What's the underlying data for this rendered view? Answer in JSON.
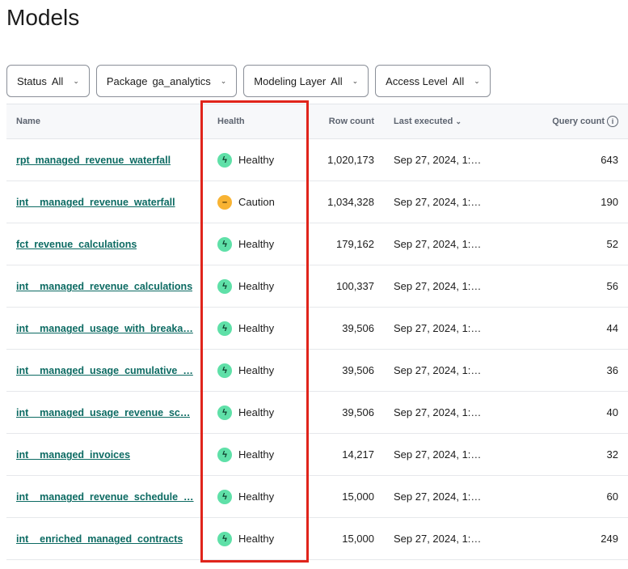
{
  "title": "Models",
  "filters": [
    {
      "label": "Status",
      "value": "All"
    },
    {
      "label": "Package",
      "value": "ga_analytics"
    },
    {
      "label": "Modeling Layer",
      "value": "All"
    },
    {
      "label": "Access Level",
      "value": "All"
    }
  ],
  "columns": {
    "name": "Name",
    "health": "Health",
    "row_count": "Row count",
    "last_executed": "Last executed",
    "query_count": "Query count"
  },
  "colors": {
    "healthy": "#5fe0a8",
    "caution": "#f8b333",
    "highlight": "#e0241b",
    "link": "#0d6b63"
  },
  "rows": [
    {
      "name": "rpt_managed_revenue_waterfall",
      "health": "Healthy",
      "status": "healthy",
      "row_count": "1,020,173",
      "last_executed": "Sep 27, 2024, 1:…",
      "query_count": "643"
    },
    {
      "name": "int__managed_revenue_waterfall",
      "health": "Caution",
      "status": "caution",
      "row_count": "1,034,328",
      "last_executed": "Sep 27, 2024, 1:…",
      "query_count": "190"
    },
    {
      "name": "fct_revenue_calculations",
      "health": "Healthy",
      "status": "healthy",
      "row_count": "179,162",
      "last_executed": "Sep 27, 2024, 1:…",
      "query_count": "52"
    },
    {
      "name": "int__managed_revenue_calculations",
      "health": "Healthy",
      "status": "healthy",
      "row_count": "100,337",
      "last_executed": "Sep 27, 2024, 1:…",
      "query_count": "56"
    },
    {
      "name": "int__managed_usage_with_breaka…",
      "health": "Healthy",
      "status": "healthy",
      "row_count": "39,506",
      "last_executed": "Sep 27, 2024, 1:…",
      "query_count": "44"
    },
    {
      "name": "int__managed_usage_cumulative_…",
      "health": "Healthy",
      "status": "healthy",
      "row_count": "39,506",
      "last_executed": "Sep 27, 2024, 1:…",
      "query_count": "36"
    },
    {
      "name": "int__managed_usage_revenue_sc…",
      "health": "Healthy",
      "status": "healthy",
      "row_count": "39,506",
      "last_executed": "Sep 27, 2024, 1:…",
      "query_count": "40"
    },
    {
      "name": "int__managed_invoices",
      "health": "Healthy",
      "status": "healthy",
      "row_count": "14,217",
      "last_executed": "Sep 27, 2024, 1:…",
      "query_count": "32"
    },
    {
      "name": "int__managed_revenue_schedule_…",
      "health": "Healthy",
      "status": "healthy",
      "row_count": "15,000",
      "last_executed": "Sep 27, 2024, 1:…",
      "query_count": "60"
    },
    {
      "name": "int__enriched_managed_contracts",
      "health": "Healthy",
      "status": "healthy",
      "row_count": "15,000",
      "last_executed": "Sep 27, 2024, 1:…",
      "query_count": "249"
    }
  ]
}
